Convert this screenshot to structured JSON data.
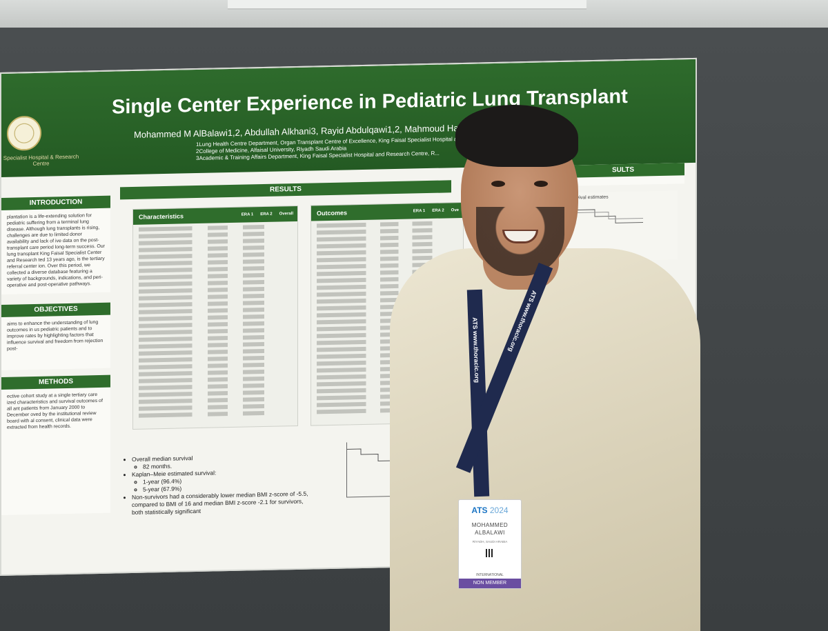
{
  "poster": {
    "title": "Single Center Experience in Pediatric Lung Transplant",
    "authors": "Mohammed M AlBalawi1,2, Abdullah Alkhani3, Rayid Abdulqawi1,2, Mahmoud Hashim1,2 ... -Mutairy1,2",
    "affiliations": [
      "1Lung Health Centre Department, Organ Transplant Centre of Excellence, King Faisal Specialist Hospital and Re...",
      "2College of Medicine, Alfaisal University, Riyadh Saudi Arabia",
      "3Academic & Training Affairs Department, King Faisal Specialist Hospital and Research Centre, R..."
    ],
    "logo_text": "Specialist Hospital & Research Centre",
    "sections": {
      "introduction": "INTRODUCTION",
      "objectives": "OBJECTIVES",
      "methods": "METHODS",
      "results": "RESULTS",
      "results_right": "SULTS"
    },
    "intro_text": "plantation is a life-extending solution for pediatric suffering from a terminal lung disease. Although lung transplants is rising, challenges are due to limited donor availability and lack of ive data on the post-transplant care period long-term success. Our lung transplant King Faisal Specialist Center and Research ted 13 years ago, is the tertiary referral center ion. Over this period, we collected a diverse database featuring a variety of backgrounds, indications, and peri-operative and post-operative pathways.",
    "objectives_text": "aims to enhance the understanding of lung outcomes in us pediatric patients and to improve rates by highlighting factors that influence survival and freedom from rejection post-",
    "methods_text": "ective cohort study at a single tertiary care ized characteristics and survival outcomes of all ant patients from January 2000 to December oved by the institutional review board with al consent, clinical data were extracted from health records.",
    "table1": {
      "header": "Characteristics",
      "cols": [
        "ERA 1",
        "ERA 2",
        "Overall"
      ]
    },
    "table2": {
      "header": "Outcomes",
      "cols": [
        "ERA 1",
        "ERA 2",
        "Ove"
      ]
    },
    "bullets": [
      "Overall median survival",
      "82 months.",
      "Kaplan–Meie estimated survival:",
      "1-year (96.4%)",
      "5-year (67.9%)",
      "Non-survivors had a considerably lower median BMI z-score of -5.5, compared to BMI of 16 and median BMI z-score -2.1 for survivors, both statistically significant"
    ],
    "km_right_label": "survival estimates"
  },
  "badge": {
    "logo": "ATS",
    "year": "2024",
    "first_name": "MOHAMMED",
    "last_name": "ALBALAWI",
    "location": "RIYADH, SAUDI ARABIA",
    "intl": "INTERNATIONAL",
    "type": "NON MEMBER"
  },
  "lanyard": {
    "text_left": "ATS  www.thoracic.org",
    "text_right": "ATS  www.thoracic.org"
  },
  "colors": {
    "poster_green": "#2e6b2c",
    "board": "#3e4244",
    "badge_purple": "#6a4ea1",
    "lanyard": "#1f2a4e"
  }
}
